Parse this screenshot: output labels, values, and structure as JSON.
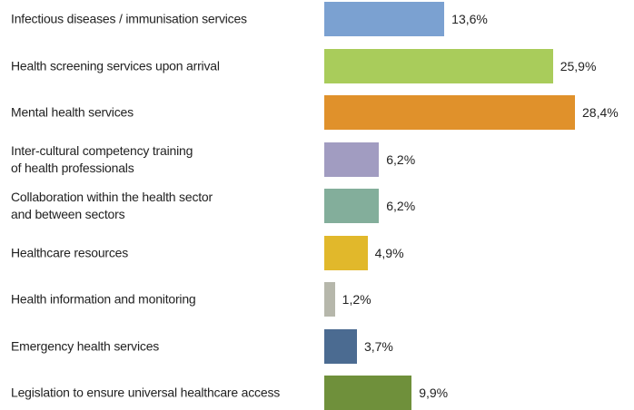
{
  "chart_data": {
    "type": "bar",
    "orientation": "horizontal",
    "categories": [
      "Infectious diseases / immunisation services",
      "Health screening services upon arrival",
      "Mental health services",
      "Inter-cultural competency training\nof health professionals",
      "Collaboration within the health sector\nand between sectors",
      "Healthcare resources",
      "Health information and monitoring",
      "Emergency health services",
      "Legislation to ensure universal healthcare access"
    ],
    "values": [
      13.6,
      25.9,
      28.4,
      6.2,
      6.2,
      4.9,
      1.2,
      3.7,
      9.9
    ],
    "value_labels": [
      "13,6%",
      "25,9%",
      "28,4%",
      "6,2%",
      "6,2%",
      "4,9%",
      "1,2%",
      "3,7%",
      "9,9%"
    ],
    "colors": [
      "#7ba1d1",
      "#a9cc5b",
      "#e0912b",
      "#a19cc1",
      "#83ae9b",
      "#e1b82b",
      "#b6b7ab",
      "#4b6b91",
      "#6f903b"
    ]
  }
}
